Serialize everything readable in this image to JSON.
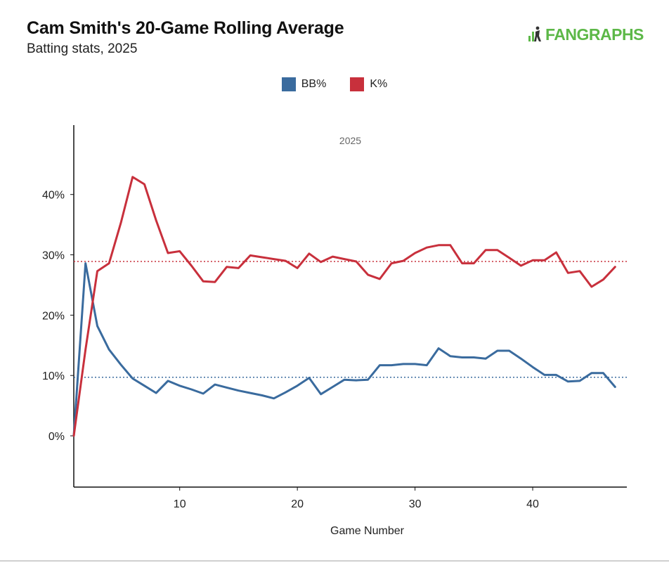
{
  "header": {
    "title": "Cam Smith's 20-Game Rolling Average",
    "subtitle": "Batting stats, 2025",
    "logo_text": "FANGRAPHS",
    "logo_color": "#5db848"
  },
  "chart_data": {
    "type": "line",
    "panel_label": "2025",
    "xlabel": "Game Number",
    "ylabel": "",
    "xlim": [
      1,
      48
    ],
    "ylim": [
      -0.085,
      0.515
    ],
    "x_ticks": [
      10,
      20,
      30,
      40
    ],
    "y_ticks": [
      0,
      0.1,
      0.2,
      0.3,
      0.4
    ],
    "y_tick_labels": [
      "0%",
      "10%",
      "20%",
      "30%",
      "40%"
    ],
    "grid": false,
    "legend_position": "top-center",
    "x": [
      1,
      2,
      3,
      4,
      5,
      6,
      7,
      8,
      9,
      10,
      11,
      12,
      13,
      14,
      15,
      16,
      17,
      18,
      19,
      20,
      21,
      22,
      23,
      24,
      25,
      26,
      27,
      28,
      29,
      30,
      31,
      32,
      33,
      34,
      35,
      36,
      37,
      38,
      39,
      40,
      41,
      42,
      43,
      44,
      45,
      46,
      47
    ],
    "series": [
      {
        "name": "BB%",
        "color": "#3a6b9e",
        "values": [
          0.0,
          0.286,
          0.182,
          0.143,
          0.118,
          0.095,
          0.083,
          0.071,
          0.091,
          0.083,
          0.077,
          0.07,
          0.085,
          0.08,
          0.075,
          0.071,
          0.067,
          0.062,
          0.072,
          0.083,
          0.096,
          0.069,
          0.081,
          0.093,
          0.092,
          0.093,
          0.117,
          0.117,
          0.119,
          0.119,
          0.117,
          0.145,
          0.132,
          0.13,
          0.13,
          0.128,
          0.141,
          0.141,
          0.128,
          0.114,
          0.101,
          0.101,
          0.09,
          0.091,
          0.104,
          0.104,
          0.081
        ],
        "average": 0.097
      },
      {
        "name": "K%",
        "color": "#c8303c",
        "values": [
          0.0,
          0.143,
          0.273,
          0.286,
          0.353,
          0.429,
          0.417,
          0.357,
          0.303,
          0.306,
          0.282,
          0.256,
          0.255,
          0.28,
          0.278,
          0.299,
          0.296,
          0.293,
          0.29,
          0.278,
          0.302,
          0.288,
          0.297,
          0.293,
          0.289,
          0.267,
          0.26,
          0.286,
          0.29,
          0.303,
          0.312,
          0.316,
          0.316,
          0.286,
          0.286,
          0.308,
          0.308,
          0.295,
          0.282,
          0.291,
          0.291,
          0.304,
          0.27,
          0.273,
          0.247,
          0.259,
          0.28
        ],
        "average": 0.289
      }
    ]
  }
}
